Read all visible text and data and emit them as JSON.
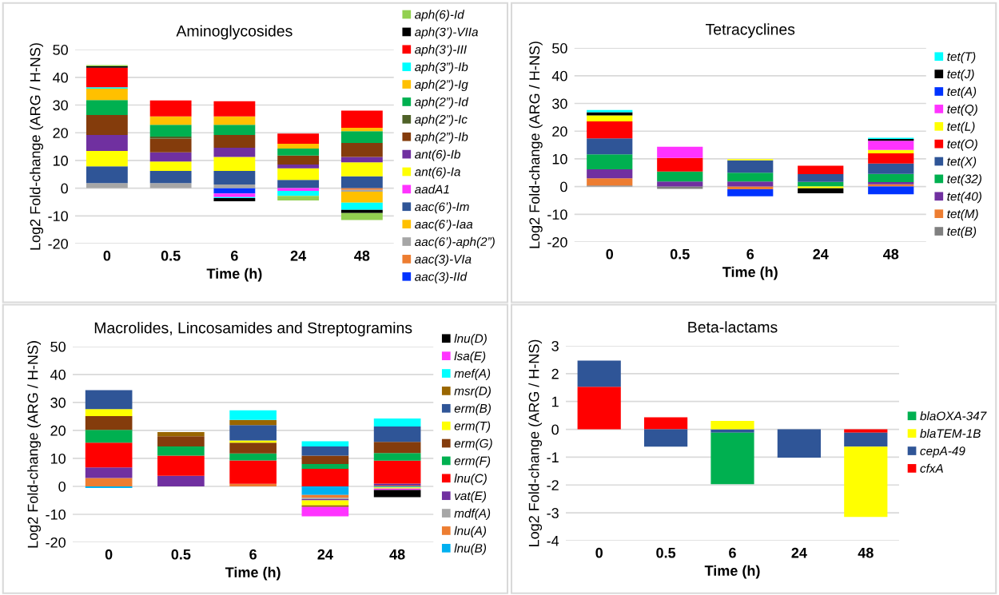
{
  "chart_data": [
    {
      "type": "bar",
      "stacked": true,
      "title": "Aminoglycosides",
      "xlabel": "Time (h)",
      "ylabel": "Log2 Fold-change (ARG / H-NS)",
      "categories": [
        "0",
        "0.5",
        "6",
        "24",
        "48"
      ],
      "ylim": [
        -20,
        50
      ],
      "yticks": [
        -20,
        -10,
        0,
        10,
        20,
        30,
        40,
        50
      ],
      "grid": "y",
      "legend": "right",
      "series": [
        {
          "name": "aac(3)-IId",
          "color": "#0033ff",
          "values": [
            null,
            null,
            -1.9,
            null,
            null
          ]
        },
        {
          "name": "aac(3)-VIa",
          "color": "#ed7d31",
          "values": [
            null,
            null,
            null,
            null,
            -0.6
          ]
        },
        {
          "name": "aac(6’)-aph(2”)",
          "color": "#a6a6a6",
          "values": [
            1.8,
            1.8,
            1.3,
            null,
            -0.7
          ]
        },
        {
          "name": "aac(6’)-Iaa",
          "color": "#ffc000",
          "values": [
            null,
            null,
            null,
            null,
            -3.9
          ]
        },
        {
          "name": "aac(6’)-Im",
          "color": "#2f5597",
          "values": [
            6.1,
            4.4,
            4.9,
            3.0,
            4.3
          ]
        },
        {
          "name": "aadA1",
          "color": "#ff33ff",
          "values": [
            null,
            null,
            -1.3,
            -1.0,
            null
          ]
        },
        {
          "name": "ant(6)-Ia",
          "color": "#ffff00",
          "values": [
            5.5,
            3.4,
            5.1,
            4.2,
            5.0
          ]
        },
        {
          "name": "ant(6)-Ib",
          "color": "#7030a0",
          "values": [
            5.8,
            3.3,
            3.3,
            1.3,
            2.0
          ]
        },
        {
          "name": "aph(2”)-Ib",
          "color": "#843c0c",
          "values": [
            7.2,
            5.0,
            4.6,
            3.3,
            5.0
          ]
        },
        {
          "name": "aph(2”)-Ic",
          "color": "#4f6228",
          "values": [
            null,
            0.7,
            null,
            null,
            null
          ]
        },
        {
          "name": "aph(2”)-Id",
          "color": "#00b050",
          "values": [
            5.4,
            4.3,
            3.7,
            2.5,
            4.3
          ]
        },
        {
          "name": "aph(2”)-Ig",
          "color": "#ffc000",
          "values": [
            4.1,
            3.0,
            3.0,
            1.7,
            1.2
          ]
        },
        {
          "name": "aph(3”)-Ib",
          "color": "#00ffff",
          "values": [
            0.5,
            null,
            -0.4,
            -1.8,
            -2.6
          ]
        },
        {
          "name": "aph(3’)-III",
          "color": "#ff0000",
          "values": [
            7.1,
            5.8,
            5.5,
            3.7,
            6.2
          ]
        },
        {
          "name": "aph(3’)-VIIa",
          "color": "#000000",
          "values": [
            0.5,
            null,
            -1.1,
            null,
            -1.2
          ]
        },
        {
          "name": "aph(6)-Id",
          "color": "#92d050",
          "values": [
            0.4,
            null,
            null,
            -1.6,
            -2.5
          ]
        }
      ]
    },
    {
      "type": "bar",
      "stacked": true,
      "title": "Tetracyclines",
      "xlabel": "Time (h)",
      "ylabel": "Log2 Fold-change (ARG / H-NS)",
      "categories": [
        "0",
        "0.5",
        "6",
        "24",
        "48"
      ],
      "ylim": [
        -20,
        50
      ],
      "yticks": [
        -20,
        -10,
        0,
        10,
        20,
        30,
        40,
        50
      ],
      "grid": "y",
      "legend": "right",
      "series": [
        {
          "name": "tet(B)",
          "color": "#808080",
          "values": [
            0.4,
            -0.8,
            null,
            null,
            null
          ]
        },
        {
          "name": "tet(M)",
          "color": "#ed7d31",
          "values": [
            2.6,
            null,
            -1.0,
            null,
            0.8
          ]
        },
        {
          "name": "tet(40)",
          "color": "#7030a0",
          "values": [
            3.2,
            1.8,
            1.8,
            null,
            0.8
          ]
        },
        {
          "name": "tet(32)",
          "color": "#00b050",
          "values": [
            5.4,
            3.6,
            3.2,
            1.7,
            3.0
          ]
        },
        {
          "name": "tet(X)",
          "color": "#2f5597",
          "values": [
            5.8,
            null,
            4.5,
            2.8,
            3.7
          ]
        },
        {
          "name": "tet(O)",
          "color": "#ff0000",
          "values": [
            6.1,
            4.9,
            null,
            3.0,
            3.7
          ]
        },
        {
          "name": "tet(L)",
          "color": "#ffff00",
          "values": [
            2.2,
            null,
            0.4,
            -0.6,
            1.2
          ]
        },
        {
          "name": "tet(Q)",
          "color": "#ff33ff",
          "values": [
            null,
            4.1,
            null,
            null,
            3.3
          ]
        },
        {
          "name": "tet(A)",
          "color": "#0033ff",
          "values": [
            null,
            null,
            -2.5,
            null,
            -2.8
          ]
        },
        {
          "name": "tet(J)",
          "color": "#000000",
          "values": [
            1.1,
            null,
            null,
            -1.8,
            0.7
          ]
        },
        {
          "name": "tet(T)",
          "color": "#00ffff",
          "values": [
            0.8,
            null,
            null,
            null,
            0.4
          ]
        }
      ]
    },
    {
      "type": "bar",
      "stacked": true,
      "title": "Macrolides, Lincosamides and Streptogramins",
      "xlabel": "Time (h)",
      "ylabel": "Log2 Fold-change (ARG / H-NS)",
      "categories": [
        "0",
        "0.5",
        "6",
        "24",
        "48"
      ],
      "ylim": [
        -20,
        50
      ],
      "yticks": [
        -20,
        -10,
        0,
        10,
        20,
        30,
        40,
        50
      ],
      "grid": "y",
      "legend": "right",
      "series": [
        {
          "name": "lnu(B)",
          "color": "#00b0f0",
          "values": [
            -0.6,
            null,
            null,
            -3.1,
            -0.4
          ]
        },
        {
          "name": "lnu(A)",
          "color": "#ed7d31",
          "values": [
            3.0,
            null,
            0.9,
            -1.0,
            0.3
          ]
        },
        {
          "name": "mdf(A)",
          "color": "#a6a6a6",
          "values": [
            null,
            null,
            null,
            -0.5,
            null
          ]
        },
        {
          "name": "vat(E)",
          "color": "#7030a0",
          "values": [
            3.8,
            3.8,
            null,
            -0.4,
            0.7
          ]
        },
        {
          "name": "lnu(C)",
          "color": "#ff0000",
          "values": [
            8.8,
            7.2,
            8.4,
            6.3,
            8.2
          ]
        },
        {
          "name": "erm(F)",
          "color": "#00b050",
          "values": [
            4.6,
            3.3,
            2.5,
            1.7,
            2.7
          ]
        },
        {
          "name": "erm(G)",
          "color": "#843c0c",
          "values": [
            4.9,
            3.6,
            3.8,
            3.0,
            4.0
          ]
        },
        {
          "name": "erm(T)",
          "color": "#ffff00",
          "values": [
            2.5,
            null,
            0.8,
            -1.8,
            -0.4
          ]
        },
        {
          "name": "erm(B)",
          "color": "#2f5597",
          "values": [
            6.8,
            null,
            5.5,
            3.3,
            5.5
          ]
        },
        {
          "name": "msr(D)",
          "color": "#996600",
          "values": [
            null,
            1.5,
            1.9,
            -0.6,
            null
          ]
        },
        {
          "name": "mef(A)",
          "color": "#00ffff",
          "values": [
            null,
            null,
            3.4,
            1.8,
            2.9
          ]
        },
        {
          "name": "lsa(E)",
          "color": "#ff33ff",
          "values": [
            null,
            null,
            null,
            -3.3,
            -0.5
          ]
        },
        {
          "name": "lnu(D)",
          "color": "#000000",
          "values": [
            null,
            null,
            null,
            null,
            -2.6
          ]
        }
      ]
    },
    {
      "type": "bar",
      "stacked": true,
      "title": "Beta-lactams",
      "xlabel": "Time (h)",
      "ylabel": "Log2 Fold-change (ARG / H-NS)",
      "categories": [
        "0",
        "0.5",
        "6",
        "24",
        "48"
      ],
      "ylim": [
        -4,
        3
      ],
      "yticks": [
        -4,
        -3,
        -2,
        -1,
        0,
        1,
        2,
        3
      ],
      "grid": "y",
      "legend": "right",
      "series": [
        {
          "name": "cfxA",
          "color": "#ff0000",
          "values": [
            1.53,
            0.43,
            null,
            null,
            -0.12
          ]
        },
        {
          "name": "cepA-49",
          "color": "#2f5597",
          "values": [
            0.94,
            -0.62,
            -0.12,
            -1.02,
            -0.5
          ]
        },
        {
          "name": "blaTEM-1B",
          "color": "#ffff00",
          "values": [
            null,
            null,
            0.3,
            null,
            -2.53
          ]
        },
        {
          "name": "blaOXA-347",
          "color": "#00b050",
          "values": [
            null,
            null,
            -1.85,
            null,
            null
          ]
        }
      ]
    }
  ]
}
